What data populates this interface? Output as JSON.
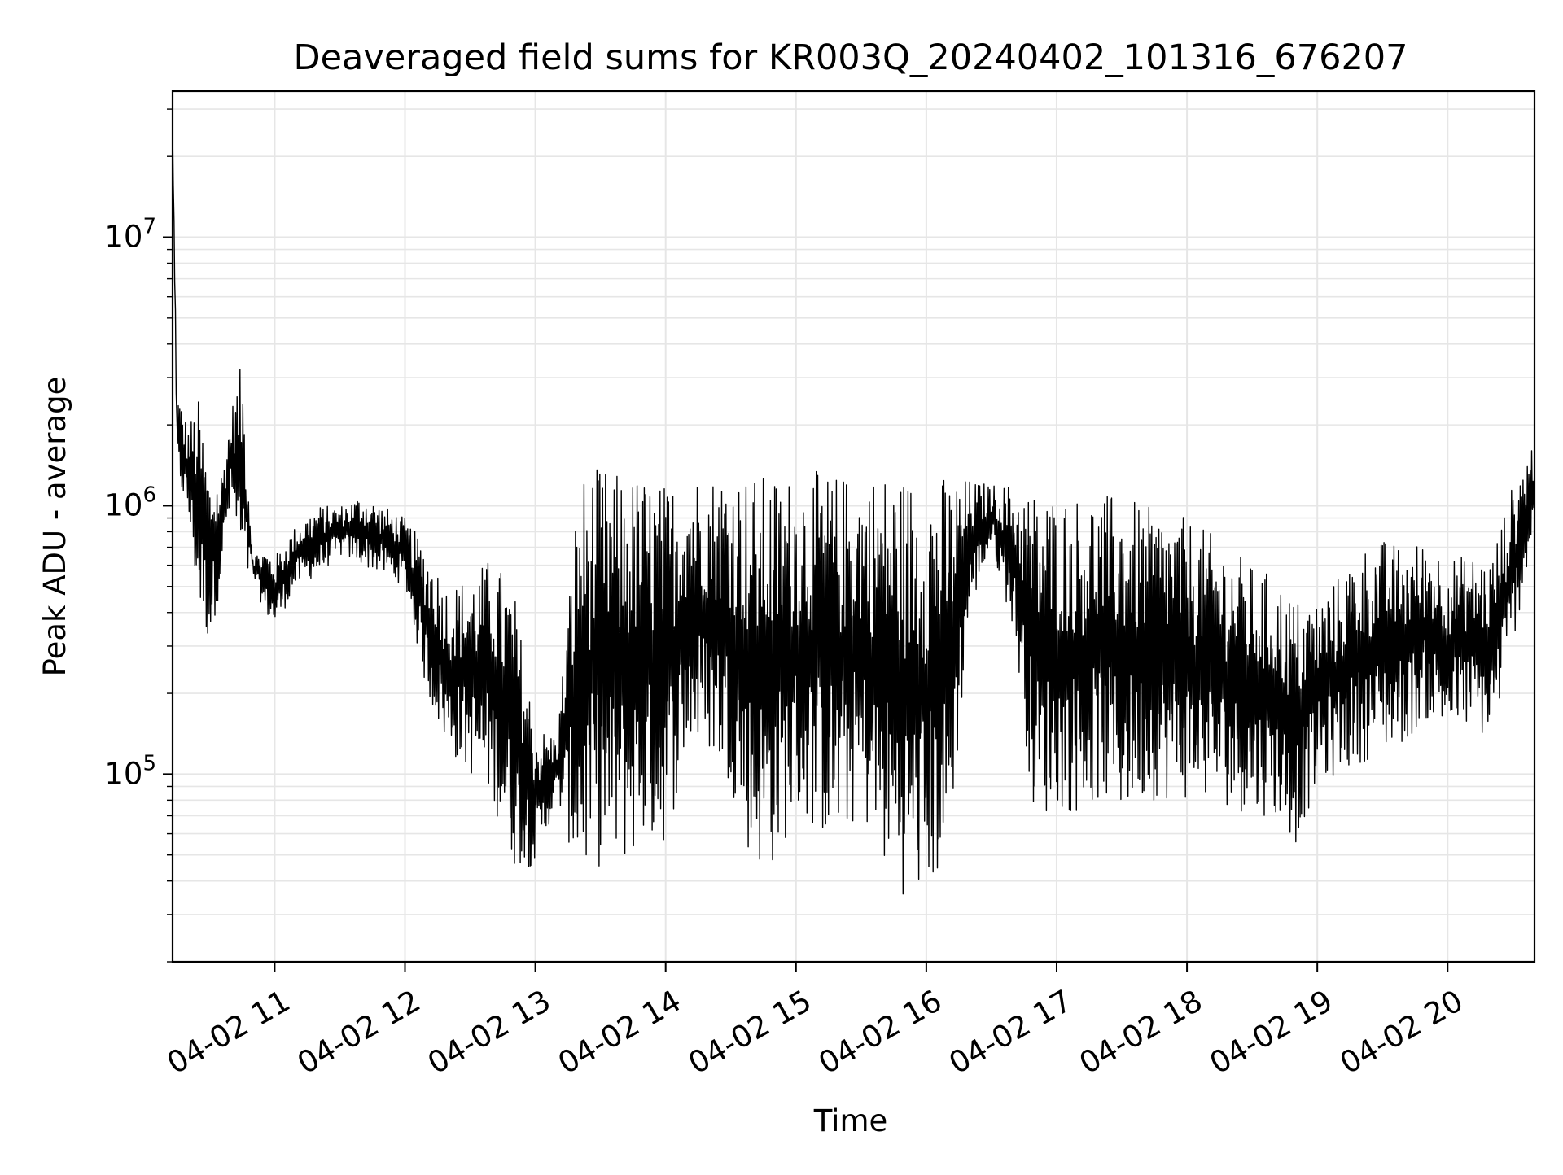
{
  "chart_data": {
    "type": "line",
    "title": "Deaveraged field sums for KR003Q_20240402_101316_676207",
    "xlabel": "Time",
    "ylabel": "Peak ADU - average",
    "yscale": "log",
    "ylim": [
      20000,
      35000000
    ],
    "xlim": [
      "04-02 10:13",
      "04-02 20:40"
    ],
    "x_ticks": [
      "04-02 11",
      "04-02 12",
      "04-02 13",
      "04-02 14",
      "04-02 15",
      "04-02 16",
      "04-02 17",
      "04-02 18",
      "04-02 19",
      "04-02 20"
    ],
    "y_ticks": [
      {
        "base": "10",
        "exp": "5",
        "value": 100000
      },
      {
        "base": "10",
        "exp": "6",
        "value": 1000000
      },
      {
        "base": "10",
        "exp": "7",
        "value": 10000000
      }
    ],
    "grid": true,
    "line_color": "#000000",
    "series": [
      {
        "x": [
          "04-02 10:13",
          "04-02 10:15",
          "04-02 10:20",
          "04-02 10:25",
          "04-02 10:30",
          "04-02 10:35",
          "04-02 10:40",
          "04-02 10:45",
          "04-02 10:50",
          "04-02 10:55",
          "04-02 11:00",
          "04-02 11:10",
          "04-02 11:20",
          "04-02 11:30",
          "04-02 11:40",
          "04-02 11:50",
          "04-02 12:00",
          "04-02 12:10",
          "04-02 12:20",
          "04-02 12:30",
          "04-02 12:40",
          "04-02 12:50",
          "04-02 13:00",
          "04-02 13:10",
          "04-02 13:20",
          "04-02 13:30",
          "04-02 13:40",
          "04-02 13:50",
          "04-02 14:00",
          "04-02 14:10",
          "04-02 14:20",
          "04-02 14:30",
          "04-02 14:40",
          "04-02 14:50",
          "04-02 15:00",
          "04-02 15:10",
          "04-02 15:20",
          "04-02 15:30",
          "04-02 15:40",
          "04-02 15:50",
          "04-02 16:00",
          "04-02 16:10",
          "04-02 16:20",
          "04-02 16:30",
          "04-02 16:40",
          "04-02 16:50",
          "04-02 17:00",
          "04-02 17:10",
          "04-02 17:20",
          "04-02 17:30",
          "04-02 17:40",
          "04-02 17:50",
          "04-02 18:00",
          "04-02 18:10",
          "04-02 18:20",
          "04-02 18:30",
          "04-02 18:40",
          "04-02 18:50",
          "04-02 19:00",
          "04-02 19:10",
          "04-02 19:20",
          "04-02 19:30",
          "04-02 19:40",
          "04-02 19:50",
          "04-02 20:00",
          "04-02 20:10",
          "04-02 20:20",
          "04-02 20:30",
          "04-02 20:40"
        ],
        "y_high": [
          25000000,
          2700000,
          2000000,
          2500000,
          1300000,
          1300000,
          2300000,
          3500000,
          650000,
          700000,
          650000,
          850000,
          1000000,
          1000000,
          1100000,
          1000000,
          900000,
          700000,
          500000,
          550000,
          650000,
          500000,
          150000,
          140000,
          1300000,
          1400000,
          1300000,
          1300000,
          1200000,
          1350000,
          1300000,
          1400000,
          1300000,
          1300000,
          1300000,
          1350000,
          1300000,
          1300000,
          1350000,
          1300000,
          1300000,
          1300000,
          1250000,
          1200000,
          1200000,
          1150000,
          1100000,
          1100000,
          1100000,
          1100000,
          1000000,
          950000,
          900000,
          800000,
          700000,
          600000,
          550000,
          450000,
          450000,
          550000,
          700000,
          750000,
          700000,
          750000,
          650000,
          650000,
          650000,
          1200000,
          1800000
        ],
        "y_low": [
          25000000,
          1300000,
          900000,
          400000,
          300000,
          500000,
          1000000,
          500000,
          550000,
          400000,
          350000,
          500000,
          550000,
          650000,
          600000,
          550000,
          500000,
          200000,
          120000,
          100000,
          80000,
          45000,
          45000,
          80000,
          40000,
          45000,
          45000,
          55000,
          55000,
          120000,
          120000,
          90000,
          45000,
          45000,
          70000,
          60000,
          55000,
          70000,
          45000,
          35000,
          35000,
          45000,
          400000,
          700000,
          350000,
          65000,
          75000,
          70000,
          80000,
          70000,
          80000,
          80000,
          80000,
          80000,
          75000,
          70000,
          70000,
          55000,
          90000,
          100000,
          110000,
          120000,
          130000,
          160000,
          140000,
          150000,
          130000,
          300000,
          800000
        ]
      }
    ]
  }
}
